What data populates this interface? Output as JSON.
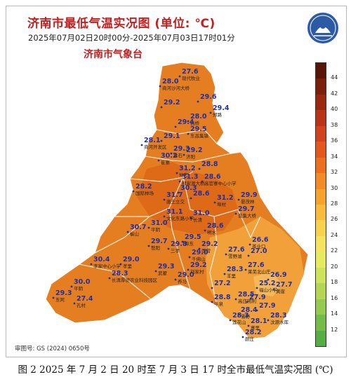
{
  "title": "济南市最低气温实况图 (单位: ℃)",
  "subtitle": "2025年07月02日20时00分-2025年07月03日17时01分",
  "org": "济南市气象台",
  "approval": "审图号: GS (2024) 0650号",
  "caption": "图 2  2025 年 7 月 2 日 20 时至 7 月 3 日 17 时全市最低气温实况图 (℃)",
  "colors": {
    "title": "#c61f1f",
    "value_text": "#1f2fa8",
    "map_fill_core": "#e57e21",
    "map_fill_south": "#f2a13a",
    "map_fill_hot": "#de6a17"
  },
  "legend": {
    "ticks": [
      "44",
      "42",
      "40",
      "38",
      "36",
      "34",
      "32",
      "30",
      "28",
      "26",
      "24",
      "22",
      "20",
      "18",
      "16",
      "14",
      "12"
    ],
    "colors": [
      "#5a1509",
      "#7b1e0c",
      "#9a2810",
      "#b93316",
      "#d1431b",
      "#e3571d",
      "#ec6e1f",
      "#f28a25",
      "#f6a22f",
      "#f8bb3e",
      "#f8d14f",
      "#f4e35e",
      "#e6ea5f",
      "#cfe35a",
      "#b4d753",
      "#95ca4e",
      "#74bb47",
      "#55ad43"
    ]
  },
  "stations": [
    {
      "value": "27.6",
      "place": "现代牧业"
    },
    {
      "value": "28.0",
      "place": "商河沙河大桥"
    },
    {
      "value": "29.2",
      "place": ""
    },
    {
      "value": "29.6",
      "place": ""
    },
    {
      "value": "29.4",
      "place": "郑路"
    },
    {
      "value": "28.0",
      "place": "白桥"
    },
    {
      "value": "29.4",
      "place": ""
    },
    {
      "value": "29.1",
      "place": ""
    },
    {
      "value": "28.1",
      "place": "商河开发区"
    },
    {
      "value": "29.5",
      "place": "东昌集镇"
    },
    {
      "value": "29.2",
      "place": "济阳"
    },
    {
      "value": "30.2",
      "place": "崔寨"
    },
    {
      "value": "28.8",
      "place": ""
    },
    {
      "value": "29.3",
      "place": "垛石"
    },
    {
      "value": "31.3",
      "place": "邢家渡大桥"
    },
    {
      "value": "28.6",
      "place": "高官寨中心小学"
    },
    {
      "value": "28.2",
      "place": "国际林场"
    },
    {
      "value": "30.3",
      "place": ""
    },
    {
      "value": "31.2",
      "place": "埠村"
    },
    {
      "value": "31.7",
      "place": "唐王立交"
    },
    {
      "value": "28.6",
      "place": ""
    },
    {
      "value": "29.9",
      "place": "晏茂林"
    },
    {
      "value": "29.7",
      "place": "普集大桥"
    },
    {
      "value": "31.0",
      "place": "长清"
    },
    {
      "value": "31.1",
      "place": "文化东路小学"
    },
    {
      "value": "31.0",
      "place": "平阴"
    },
    {
      "value": "30.7",
      "place": "榆山"
    },
    {
      "value": "29.7",
      "place": "嶅阳"
    },
    {
      "value": "29.8",
      "place": "三孝"
    },
    {
      "value": "29.5",
      "place": "埠东"
    },
    {
      "value": "29.2",
      "place": "西营"
    },
    {
      "value": "28.6",
      "place": "明水"
    },
    {
      "value": "26.6",
      "place": "茶业口"
    },
    {
      "value": "27.6",
      "place": "雪野湖"
    },
    {
      "value": "27.0",
      "place": ""
    },
    {
      "value": "29.0",
      "place": "千佛山"
    },
    {
      "value": "30.4",
      "place": "李家中心小学"
    },
    {
      "value": "29.0",
      "place": "孝里"
    },
    {
      "value": "28.3",
      "place": "长清厚德农业科技园区"
    },
    {
      "value": "29.3",
      "place": "武翟"
    },
    {
      "value": "30.0",
      "place": "平阴"
    },
    {
      "value": "27.2",
      "place": ""
    },
    {
      "value": "28.3",
      "place": "羊里"
    },
    {
      "value": "27.6",
      "place": "莱芜北山庄"
    },
    {
      "value": "26.9",
      "place": ""
    },
    {
      "value": "25.2",
      "place": "福山小学"
    },
    {
      "value": "29.3",
      "place": "东阿"
    },
    {
      "value": "27.4",
      "place": "孔村"
    },
    {
      "value": "28.8",
      "place": "牛泉"
    },
    {
      "value": "28.5",
      "place": "高庄明利"
    },
    {
      "value": "27.9",
      "place": ""
    },
    {
      "value": "28.4",
      "place": "雪野"
    },
    {
      "value": "27.7",
      "place": "黄崖"
    },
    {
      "value": "27.9",
      "place": ""
    },
    {
      "value": "28.3",
      "place": "汶源水库"
    },
    {
      "value": "28.3",
      "place": "莲花山"
    },
    {
      "value": "28.1",
      "place": "寨里"
    },
    {
      "value": "28.2",
      "place": "颜庄"
    },
    {
      "value": "29.0",
      "place": "养马"
    },
    {
      "value": "29.2",
      "place": "刘家村"
    },
    {
      "value": "31.2",
      "place": "仲宫"
    }
  ]
}
